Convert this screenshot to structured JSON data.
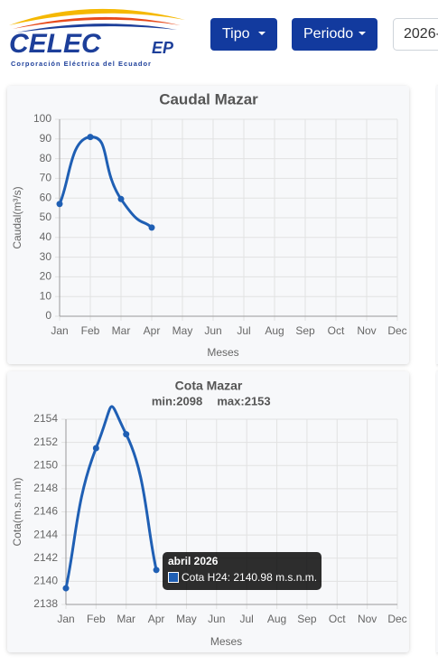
{
  "header": {
    "logo": "CELEC",
    "logo_suffix": "EP",
    "logo_subtitle": "Corporación Eléctrica del Ecuador",
    "buttons": [
      "Tipo",
      "Periodo"
    ],
    "date_input": "2026-"
  },
  "chart_data": [
    {
      "type": "line",
      "title": "Caudal Mazar",
      "x_label": "Meses",
      "y_label": "Caudal(m³/s)",
      "categories": [
        "Jan",
        "Feb",
        "Mar",
        "Apr",
        "May",
        "Jun",
        "Jul",
        "Aug",
        "Sep",
        "Oct",
        "Nov",
        "Dec"
      ],
      "values": [
        57,
        91,
        59.5,
        45,
        null,
        null,
        null,
        null,
        null,
        null,
        null,
        null
      ],
      "color": "#1f5fb4",
      "ylim": [
        0,
        100
      ],
      "yticks": [
        0,
        10,
        20,
        30,
        40,
        50,
        60,
        70,
        80,
        90,
        100
      ],
      "grid": true
    },
    {
      "type": "line",
      "title": "Cota Mazar",
      "subtitle": [
        "min:2098",
        "max:2153"
      ],
      "x_label": "Meses",
      "y_label": "Cota(m.s.n.m)",
      "categories": [
        "Jan",
        "Feb",
        "Mar",
        "Apr",
        "May",
        "Jun",
        "Jul",
        "Aug",
        "Sep",
        "Oct",
        "Nov",
        "Dec"
      ],
      "values": [
        2139.4,
        2151.5,
        2152.7,
        2140.98,
        null,
        null,
        null,
        null,
        null,
        null,
        null,
        null
      ],
      "color": "#1f5fb4",
      "ylim": [
        2138,
        2154
      ],
      "yticks": [
        2138,
        2140,
        2142,
        2144,
        2146,
        2148,
        2150,
        2152,
        2154
      ],
      "grid": true,
      "tooltip": {
        "title": "abril 2026",
        "label": "Cota H24: 2140.98 m.s.n.m."
      }
    }
  ]
}
